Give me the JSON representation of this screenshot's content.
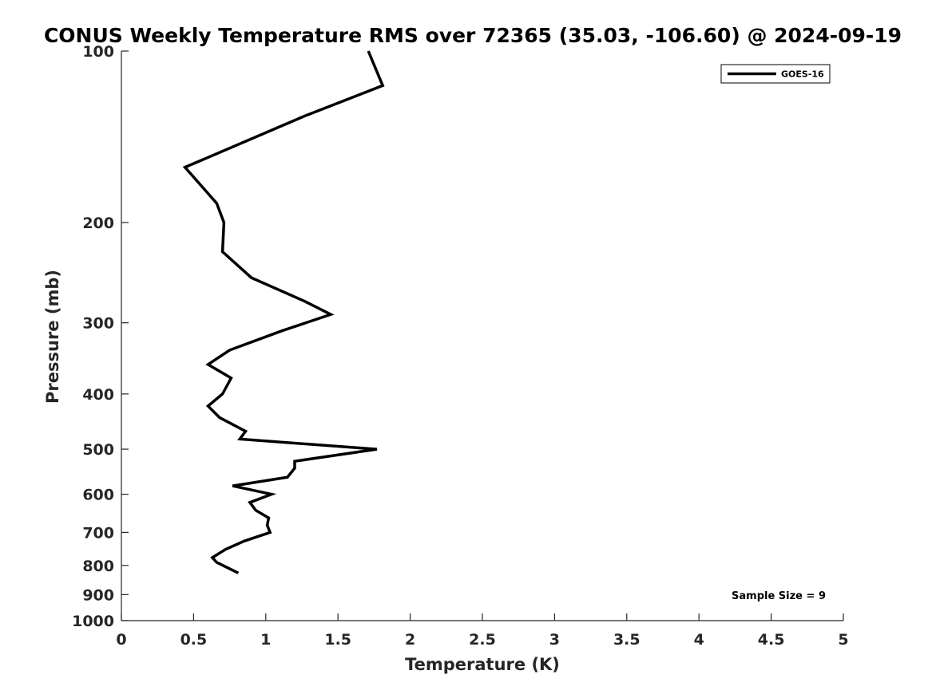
{
  "chart_data": {
    "type": "line",
    "title": "CONUS Weekly Temperature RMS over 72365 (35.03, -106.60) @ 2024-09-19",
    "xlabel": "Temperature (K)",
    "ylabel": "Pressure (mb)",
    "xlim": [
      0,
      5
    ],
    "ylim": [
      100,
      1000
    ],
    "y_scale": "log",
    "y_inverted": true,
    "grid": false,
    "xticks": [
      0,
      0.5,
      1,
      1.5,
      2,
      2.5,
      3,
      3.5,
      4,
      4.5,
      5
    ],
    "xtick_labels": [
      "0",
      "0.5",
      "1",
      "1.5",
      "2",
      "2.5",
      "3",
      "3.5",
      "4",
      "4.5",
      "5"
    ],
    "yticks": [
      100,
      200,
      300,
      400,
      500,
      600,
      700,
      800,
      900,
      1000
    ],
    "ytick_labels": [
      "100",
      "200",
      "300",
      "400",
      "500",
      "600",
      "700",
      "800",
      "900",
      "1000"
    ],
    "legend": {
      "position": "top-right",
      "entries": [
        "GOES-16"
      ]
    },
    "annotation": "Sample Size = 9",
    "series": [
      {
        "name": "GOES-16",
        "color": "#000000",
        "points": [
          {
            "x": 1.71,
            "y": 100
          },
          {
            "x": 1.81,
            "y": 115
          },
          {
            "x": 1.27,
            "y": 130
          },
          {
            "x": 0.44,
            "y": 160
          },
          {
            "x": 0.66,
            "y": 185
          },
          {
            "x": 0.71,
            "y": 200
          },
          {
            "x": 0.7,
            "y": 225
          },
          {
            "x": 0.9,
            "y": 250
          },
          {
            "x": 1.27,
            "y": 275
          },
          {
            "x": 1.45,
            "y": 290
          },
          {
            "x": 1.11,
            "y": 310
          },
          {
            "x": 0.75,
            "y": 335
          },
          {
            "x": 0.6,
            "y": 355
          },
          {
            "x": 0.76,
            "y": 375
          },
          {
            "x": 0.7,
            "y": 400
          },
          {
            "x": 0.6,
            "y": 420
          },
          {
            "x": 0.68,
            "y": 440
          },
          {
            "x": 0.86,
            "y": 465
          },
          {
            "x": 0.82,
            "y": 480
          },
          {
            "x": 1.77,
            "y": 500
          },
          {
            "x": 1.2,
            "y": 525
          },
          {
            "x": 1.2,
            "y": 540
          },
          {
            "x": 1.15,
            "y": 560
          },
          {
            "x": 0.77,
            "y": 580
          },
          {
            "x": 1.04,
            "y": 600
          },
          {
            "x": 0.89,
            "y": 620
          },
          {
            "x": 0.93,
            "y": 640
          },
          {
            "x": 1.02,
            "y": 660
          },
          {
            "x": 1.01,
            "y": 680
          },
          {
            "x": 1.03,
            "y": 700
          },
          {
            "x": 0.85,
            "y": 725
          },
          {
            "x": 0.72,
            "y": 750
          },
          {
            "x": 0.63,
            "y": 775
          },
          {
            "x": 0.66,
            "y": 790
          },
          {
            "x": 0.81,
            "y": 825
          }
        ]
      }
    ]
  }
}
